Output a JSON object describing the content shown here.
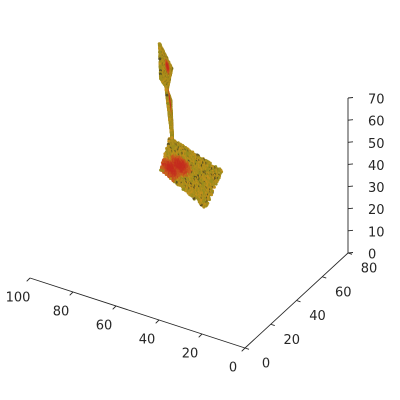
{
  "chart_data": {
    "type": "scatter",
    "projection": "3d",
    "title": "",
    "xlabel": "",
    "ylabel": "",
    "zlabel": "",
    "xlim": [
      0,
      100
    ],
    "ylim": [
      0,
      80
    ],
    "zlim": [
      0,
      70
    ],
    "x_ticks": [
      0,
      20,
      40,
      60,
      80,
      100
    ],
    "y_ticks": [
      0,
      20,
      40,
      60,
      80
    ],
    "z_ticks": [
      0,
      10,
      20,
      30,
      40,
      50,
      60,
      70
    ],
    "grid": false,
    "colors": {
      "low": "#7a8a1e",
      "mid": "#c9901b",
      "high": "#c42a1e",
      "dark": "#5b5020",
      "axis": "#262626"
    },
    "series": [
      {
        "shape": "quad",
        "corners": [
          [
            18,
            12,
            68
          ],
          [
            48,
            22,
            68
          ],
          [
            50,
            18,
            55
          ],
          [
            22,
            6,
            53
          ]
        ],
        "bulge": 5,
        "hot": [
          [
            0.7,
            0.6
          ],
          [
            0.85,
            0.8
          ]
        ]
      },
      {
        "shape": "quad",
        "corners": [
          [
            70,
            60,
            72
          ],
          [
            83,
            72,
            73
          ],
          [
            80,
            68,
            60
          ],
          [
            72,
            60,
            62
          ]
        ],
        "bulge": 4,
        "hot": [
          [
            0.4,
            0.4
          ]
        ]
      },
      {
        "shape": "quad",
        "corners": [
          [
            80,
            76,
            46
          ],
          [
            86,
            82,
            47
          ],
          [
            73,
            66,
            32
          ],
          [
            70,
            61,
            35
          ]
        ],
        "bulge": 3,
        "hot": [
          [
            0.7,
            0.2
          ]
        ]
      }
    ]
  }
}
